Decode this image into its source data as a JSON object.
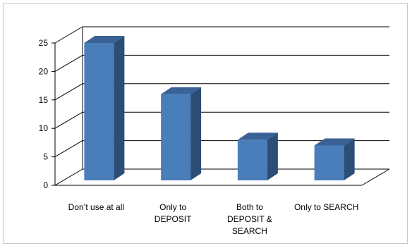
{
  "chart_data": {
    "type": "bar",
    "style": "3d-column",
    "categories": [
      "Don’t use at all",
      "Only to DEPOSIT",
      "Both to DEPOSIT & SEARCH",
      "Only to SEARCH"
    ],
    "category_label_lines": [
      [
        "Don’t use at all"
      ],
      [
        "Only to",
        "DEPOSIT"
      ],
      [
        "Both to",
        "DEPOSIT &",
        "SEARCH"
      ],
      [
        "Only to SEARCH"
      ]
    ],
    "values": [
      25,
      16,
      8,
      7
    ],
    "ylim": [
      0,
      25
    ],
    "yticks": [
      "0",
      "5",
      "10",
      "15",
      "20",
      "25"
    ],
    "title": "",
    "xlabel": "",
    "ylabel": "",
    "grid": true,
    "legend": "none",
    "colors": {
      "bar_front": "#4a7ebb",
      "bar_side": "#2c4d75",
      "bar_top": "#3a6296",
      "grid": "#000000",
      "wall": "#ffffff",
      "frame": "#c8c8c8"
    }
  }
}
